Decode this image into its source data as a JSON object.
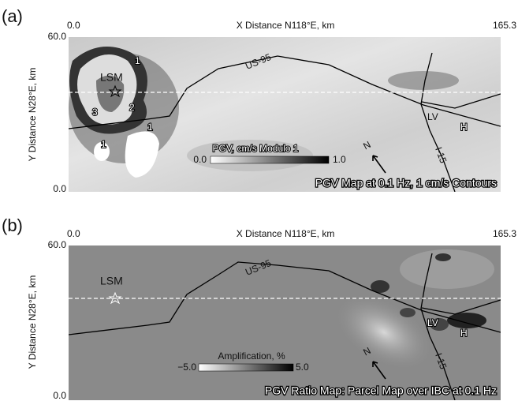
{
  "panels": [
    {
      "label": "(a)",
      "x_axis_title": "X Distance N118°E, km",
      "x_ticks": [
        "0.0",
        "165.3"
      ],
      "y_axis_title": "Y Distance N28°E, km",
      "y_ticks": [
        "60.0",
        "0.0"
      ],
      "places": [
        "LSM",
        "LV",
        "H"
      ],
      "roads": [
        "US-95",
        "I-15"
      ],
      "north": "N",
      "contour_labels": [
        "1",
        "2",
        "3",
        "1",
        "1"
      ],
      "colorbar": {
        "title": "PGV, cm/s Modulo 1",
        "min": "0.0",
        "max": "1.0"
      },
      "caption": "PGV Map at 0.1 Hz, 1 cm/s Contours"
    },
    {
      "label": "(b)",
      "x_axis_title": "X Distance N118°E, km",
      "x_ticks": [
        "0.0",
        "165.3"
      ],
      "y_axis_title": "Y Distance N28°E, km",
      "y_ticks": [
        "60.0",
        "0.0"
      ],
      "places": [
        "LSM",
        "LV",
        "H"
      ],
      "roads": [
        "US-95",
        "I-15"
      ],
      "north": "N",
      "colorbar": {
        "title": "Amplification, %",
        "min": "−5.0",
        "max": "5.0"
      },
      "caption": "PGV Ratio Map: Parcel Map over IBC at 0.1 Hz"
    }
  ]
}
